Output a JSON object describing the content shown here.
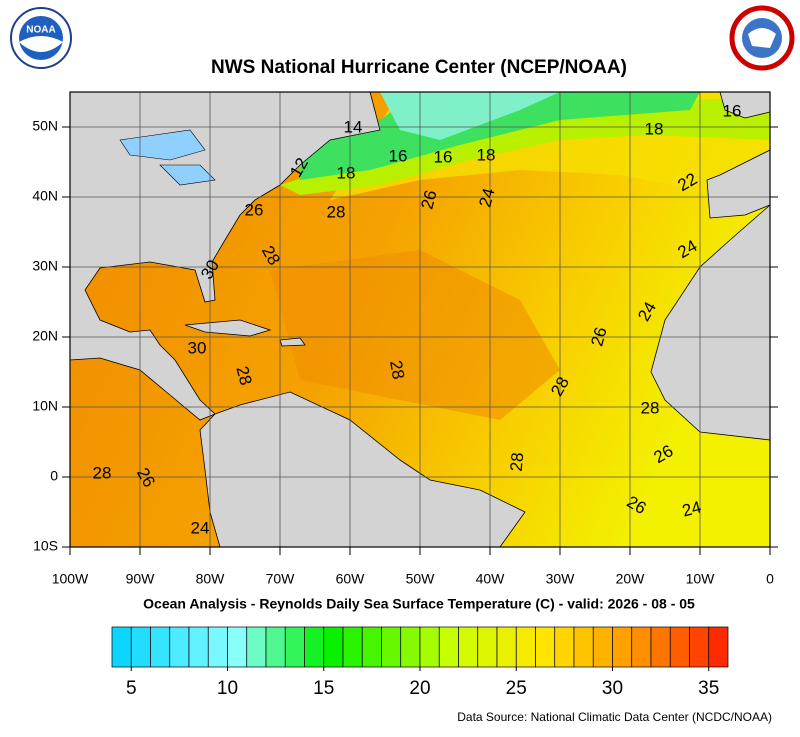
{
  "title": "NWS National Hurricane Center (NCEP/NOAA)",
  "subtitle": "Ocean Analysis - Reynolds Daily Sea Surface Temperature (C) - valid: 2026 - 08 - 05",
  "source": "Data Source: National Climatic Data Center (NCDC/NOAA)",
  "map": {
    "xlim": [
      -100,
      0
    ],
    "ylim": [
      -10,
      55
    ],
    "xticks": [
      {
        "value": -100,
        "label": "100W"
      },
      {
        "value": -90,
        "label": "90W"
      },
      {
        "value": -80,
        "label": "80W"
      },
      {
        "value": -70,
        "label": "70W"
      },
      {
        "value": -60,
        "label": "60W"
      },
      {
        "value": -50,
        "label": "50W"
      },
      {
        "value": -40,
        "label": "40W"
      },
      {
        "value": -30,
        "label": "30W"
      },
      {
        "value": -20,
        "label": "20W"
      },
      {
        "value": -10,
        "label": "10W"
      },
      0
    ],
    "yticks": [
      {
        "value": 50,
        "label": "50N"
      },
      {
        "value": 40,
        "label": "40N"
      },
      {
        "value": 30,
        "label": "30N"
      },
      {
        "value": 20,
        "label": "20N"
      },
      {
        "value": 10,
        "label": "10N"
      },
      0,
      {
        "value": -10,
        "label": "10S"
      }
    ],
    "grid": true,
    "contour_labels": [
      14,
      16,
      16,
      18,
      18,
      16,
      18,
      12,
      26,
      28,
      26,
      24,
      22,
      24,
      30,
      28,
      24,
      26,
      30,
      28,
      28,
      28,
      28,
      28,
      26,
      28,
      26,
      26,
      24,
      24
    ]
  },
  "colorbar": {
    "lim": [
      4,
      36
    ],
    "ticks": [
      5,
      10,
      15,
      20,
      25,
      30,
      35
    ]
  }
}
